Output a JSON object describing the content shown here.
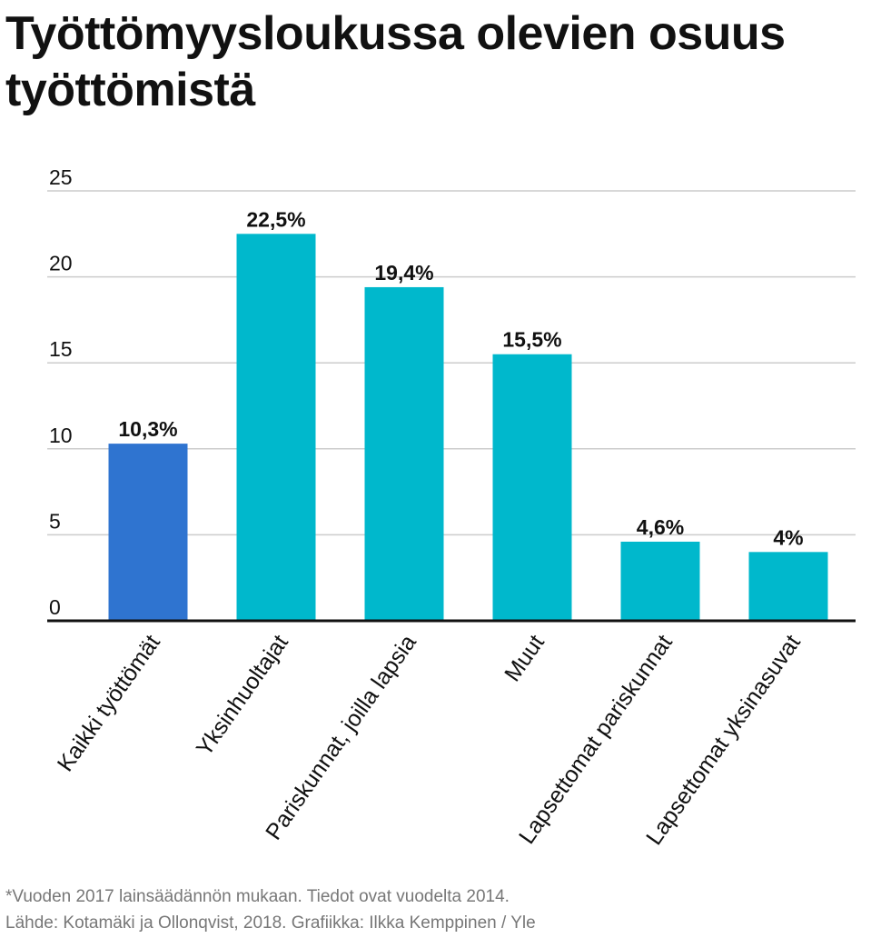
{
  "title": "Työttömyysloukussa olevien osuus työttömistä",
  "notes": {
    "footnote": "*Vuoden 2017 lainsäädännön mukaan. Tiedot ovat vuodelta 2014.",
    "source": "Lähde: Kotamäki ja Ollonqvist, 2018. Grafiikka: Ilkka Kemppinen / Yle"
  },
  "colors": {
    "highlight": "#2f74d0",
    "bar": "#00b8cc",
    "grid": "#cccccc",
    "axis": "#111111",
    "text": "#111111",
    "note": "#777777"
  },
  "chart_data": {
    "type": "bar",
    "title": "Työttömyysloukussa olevien osuus työttömistä",
    "xlabel": "",
    "ylabel": "",
    "ylim": [
      0,
      25
    ],
    "yticks": [
      0,
      5,
      10,
      15,
      20,
      25
    ],
    "grid": true,
    "legend": "none",
    "categories": [
      "Kaikki työttömät",
      "Yksinhuoltajat",
      "Pariskunnat, joilla lapsia",
      "Muut",
      "Lapsettomat pariskunnat",
      "Lapsettomat yksinasuvat"
    ],
    "values": [
      10.3,
      22.5,
      19.4,
      15.5,
      4.6,
      4
    ],
    "data_labels": [
      "10,3%",
      "22,5%",
      "19,4%",
      "15,5%",
      "4,6%",
      "4%"
    ],
    "highlighted_category": "Kaikki työttömät"
  }
}
